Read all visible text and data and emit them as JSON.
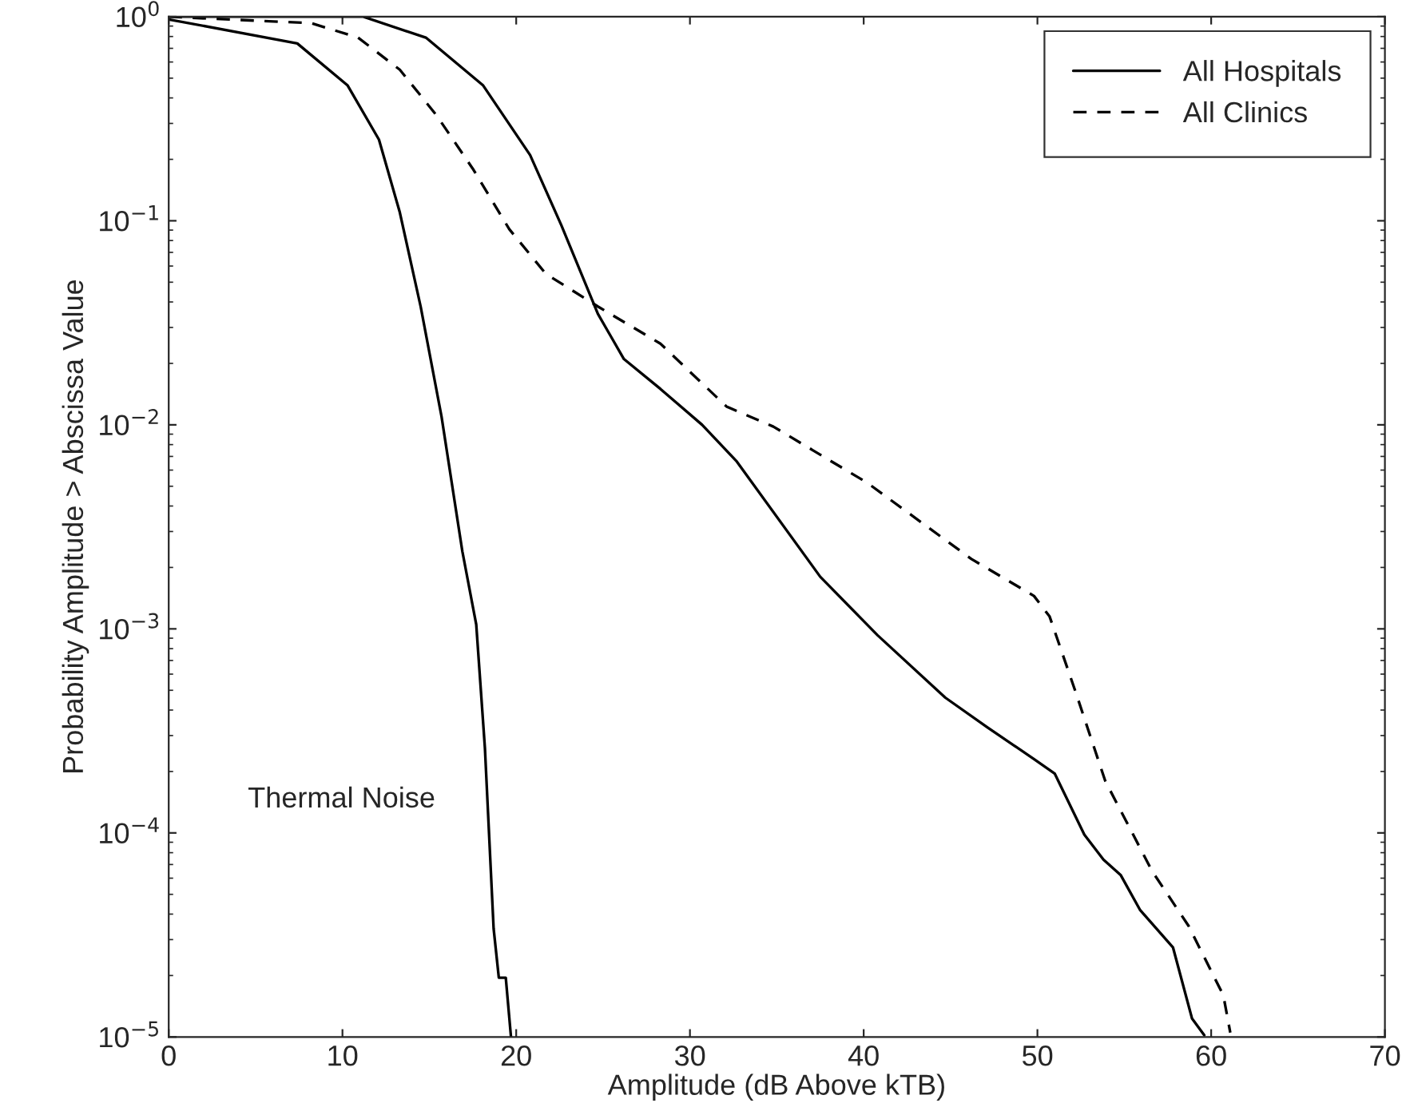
{
  "chart_data": {
    "type": "line",
    "xlabel": "Amplitude (dB Above kTB)",
    "ylabel": "Probability Amplitude > Abscissa Value",
    "log": "y",
    "xlim": [
      0,
      70
    ],
    "xticks": [
      0,
      10,
      20,
      30,
      40,
      50,
      60,
      70
    ],
    "ylim": [
      1e-05,
      1
    ],
    "yticks": [
      {
        "value": 1e-05,
        "label": "10$^{−5}$"
      },
      {
        "value": 0.0001,
        "label": "10$^{−4}$"
      },
      {
        "value": 0.001,
        "label": "10$^{−3}$"
      },
      {
        "value": 0.01,
        "label": "10$^{−2}$"
      },
      {
        "value": 0.1,
        "label": "10$^{−1}$"
      },
      {
        "value": 1,
        "label": "10$^{0}$"
      }
    ],
    "grid": false,
    "legend": "top right",
    "marker": "none",
    "annotations": [
      "Thermal Noise"
    ],
    "series": [
      {
        "name": "All Hospitals",
        "color": "#000000",
        "line_style": "solid",
        "x": [
          0,
          11.2,
          14.8,
          18.1,
          20.8,
          22.6,
          24.7,
          26.2,
          28.3,
          30.7,
          32.7,
          37.5,
          40.8,
          44.7,
          47.1,
          49.8,
          51.0,
          52.7,
          53.8,
          54.8,
          55.9,
          57.8,
          58.9,
          59.6
        ],
        "values": [
          1,
          1,
          0.79,
          0.46,
          0.21,
          0.095,
          0.035,
          0.021,
          0.015,
          0.01,
          0.0066,
          0.0018,
          0.00093,
          0.00046,
          0.00033,
          0.00023,
          0.000195,
          9.8e-05,
          7.4e-05,
          6.2e-05,
          4.2e-05,
          2.75e-05,
          1.23e-05,
          1.02e-05
        ]
      },
      {
        "name": "All Clinics",
        "color": "#000000",
        "line_style": "dashed",
        "x": [
          0,
          8.2,
          10.9,
          13.3,
          15.4,
          17.5,
          19.6,
          21.7,
          24.7,
          28.3,
          32.1,
          34.8,
          40.2,
          46.2,
          49.8,
          50.7,
          52.2,
          53.9,
          56.6,
          58.7,
          60.7,
          61.1
        ],
        "values": [
          1,
          0.93,
          0.79,
          0.55,
          0.33,
          0.18,
          0.091,
          0.055,
          0.038,
          0.025,
          0.0123,
          0.0098,
          0.0052,
          0.0022,
          0.00145,
          0.00115,
          0.00049,
          0.00018,
          6.5e-05,
          3.5e-05,
          1.6e-05,
          1.05e-05
        ]
      },
      {
        "color": "#000000",
        "line_style": "solid",
        "x": [
          0,
          7.4,
          10.3,
          12.1,
          13.3,
          14.5,
          15.7,
          16.9,
          17.7,
          18.2,
          18.7,
          19.0,
          19.4,
          19.7
        ],
        "values": [
          0.97,
          0.74,
          0.46,
          0.25,
          0.11,
          0.038,
          0.011,
          0.0024,
          0.00105,
          0.00026,
          3.4e-05,
          1.95e-05,
          1.95e-05,
          1e-05
        ]
      }
    ]
  }
}
